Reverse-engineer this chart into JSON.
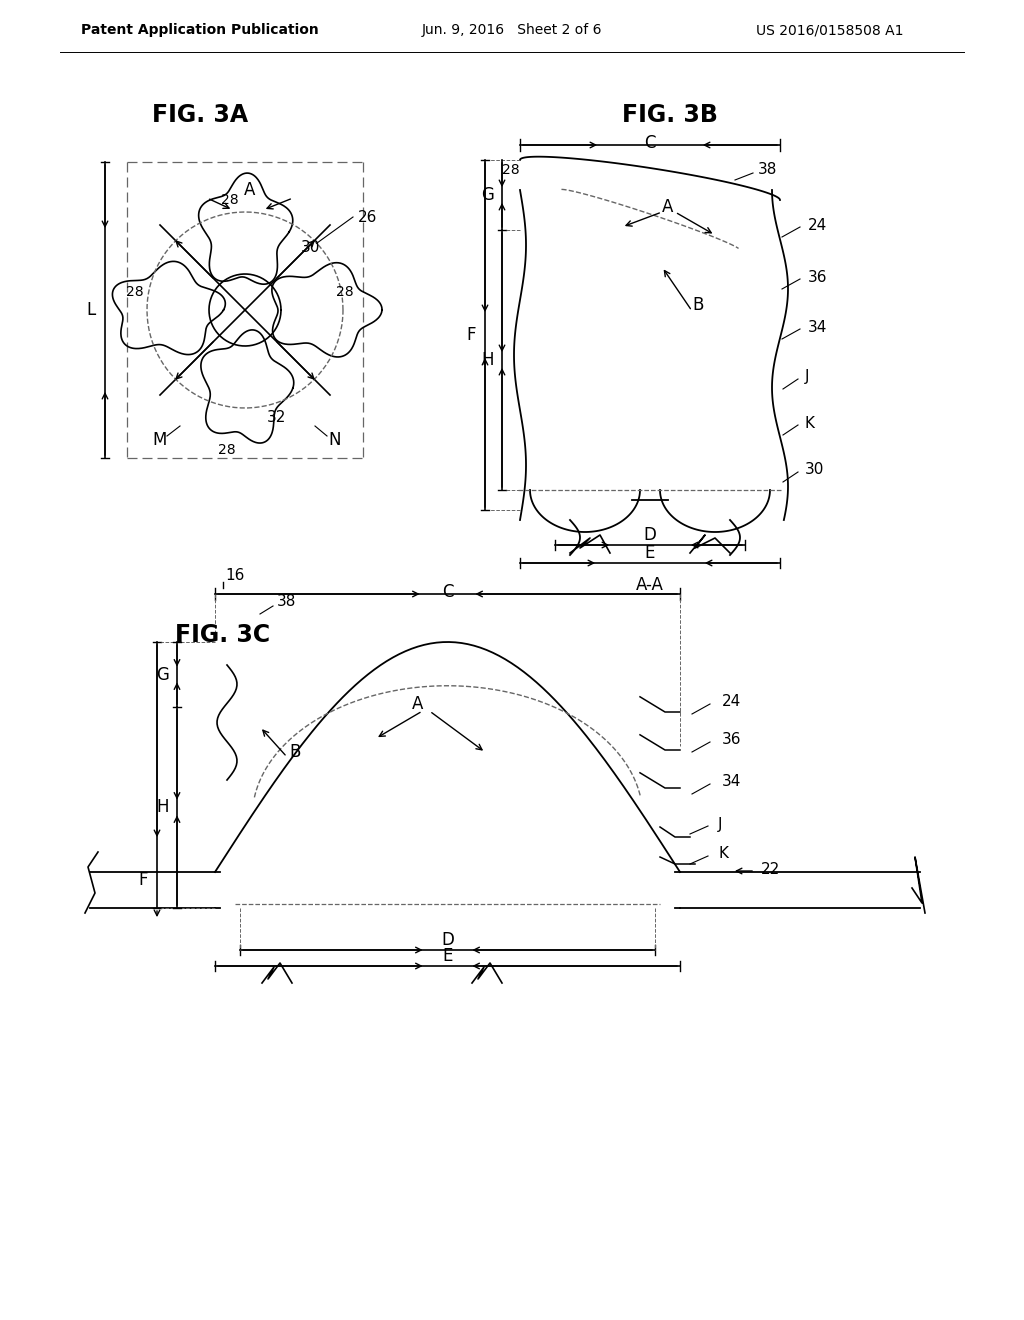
{
  "background_color": "#ffffff",
  "header_left": "Patent Application Publication",
  "header_center": "Jun. 9, 2016   Sheet 2 of 6",
  "header_right": "US 2016/0158508 A1",
  "fig3a_title": "FIG. 3A",
  "fig3b_title": "FIG. 3B",
  "fig3c_title": "FIG. 3C",
  "line_color": "#000000",
  "dash_color": "#666666",
  "text_color": "#000000"
}
